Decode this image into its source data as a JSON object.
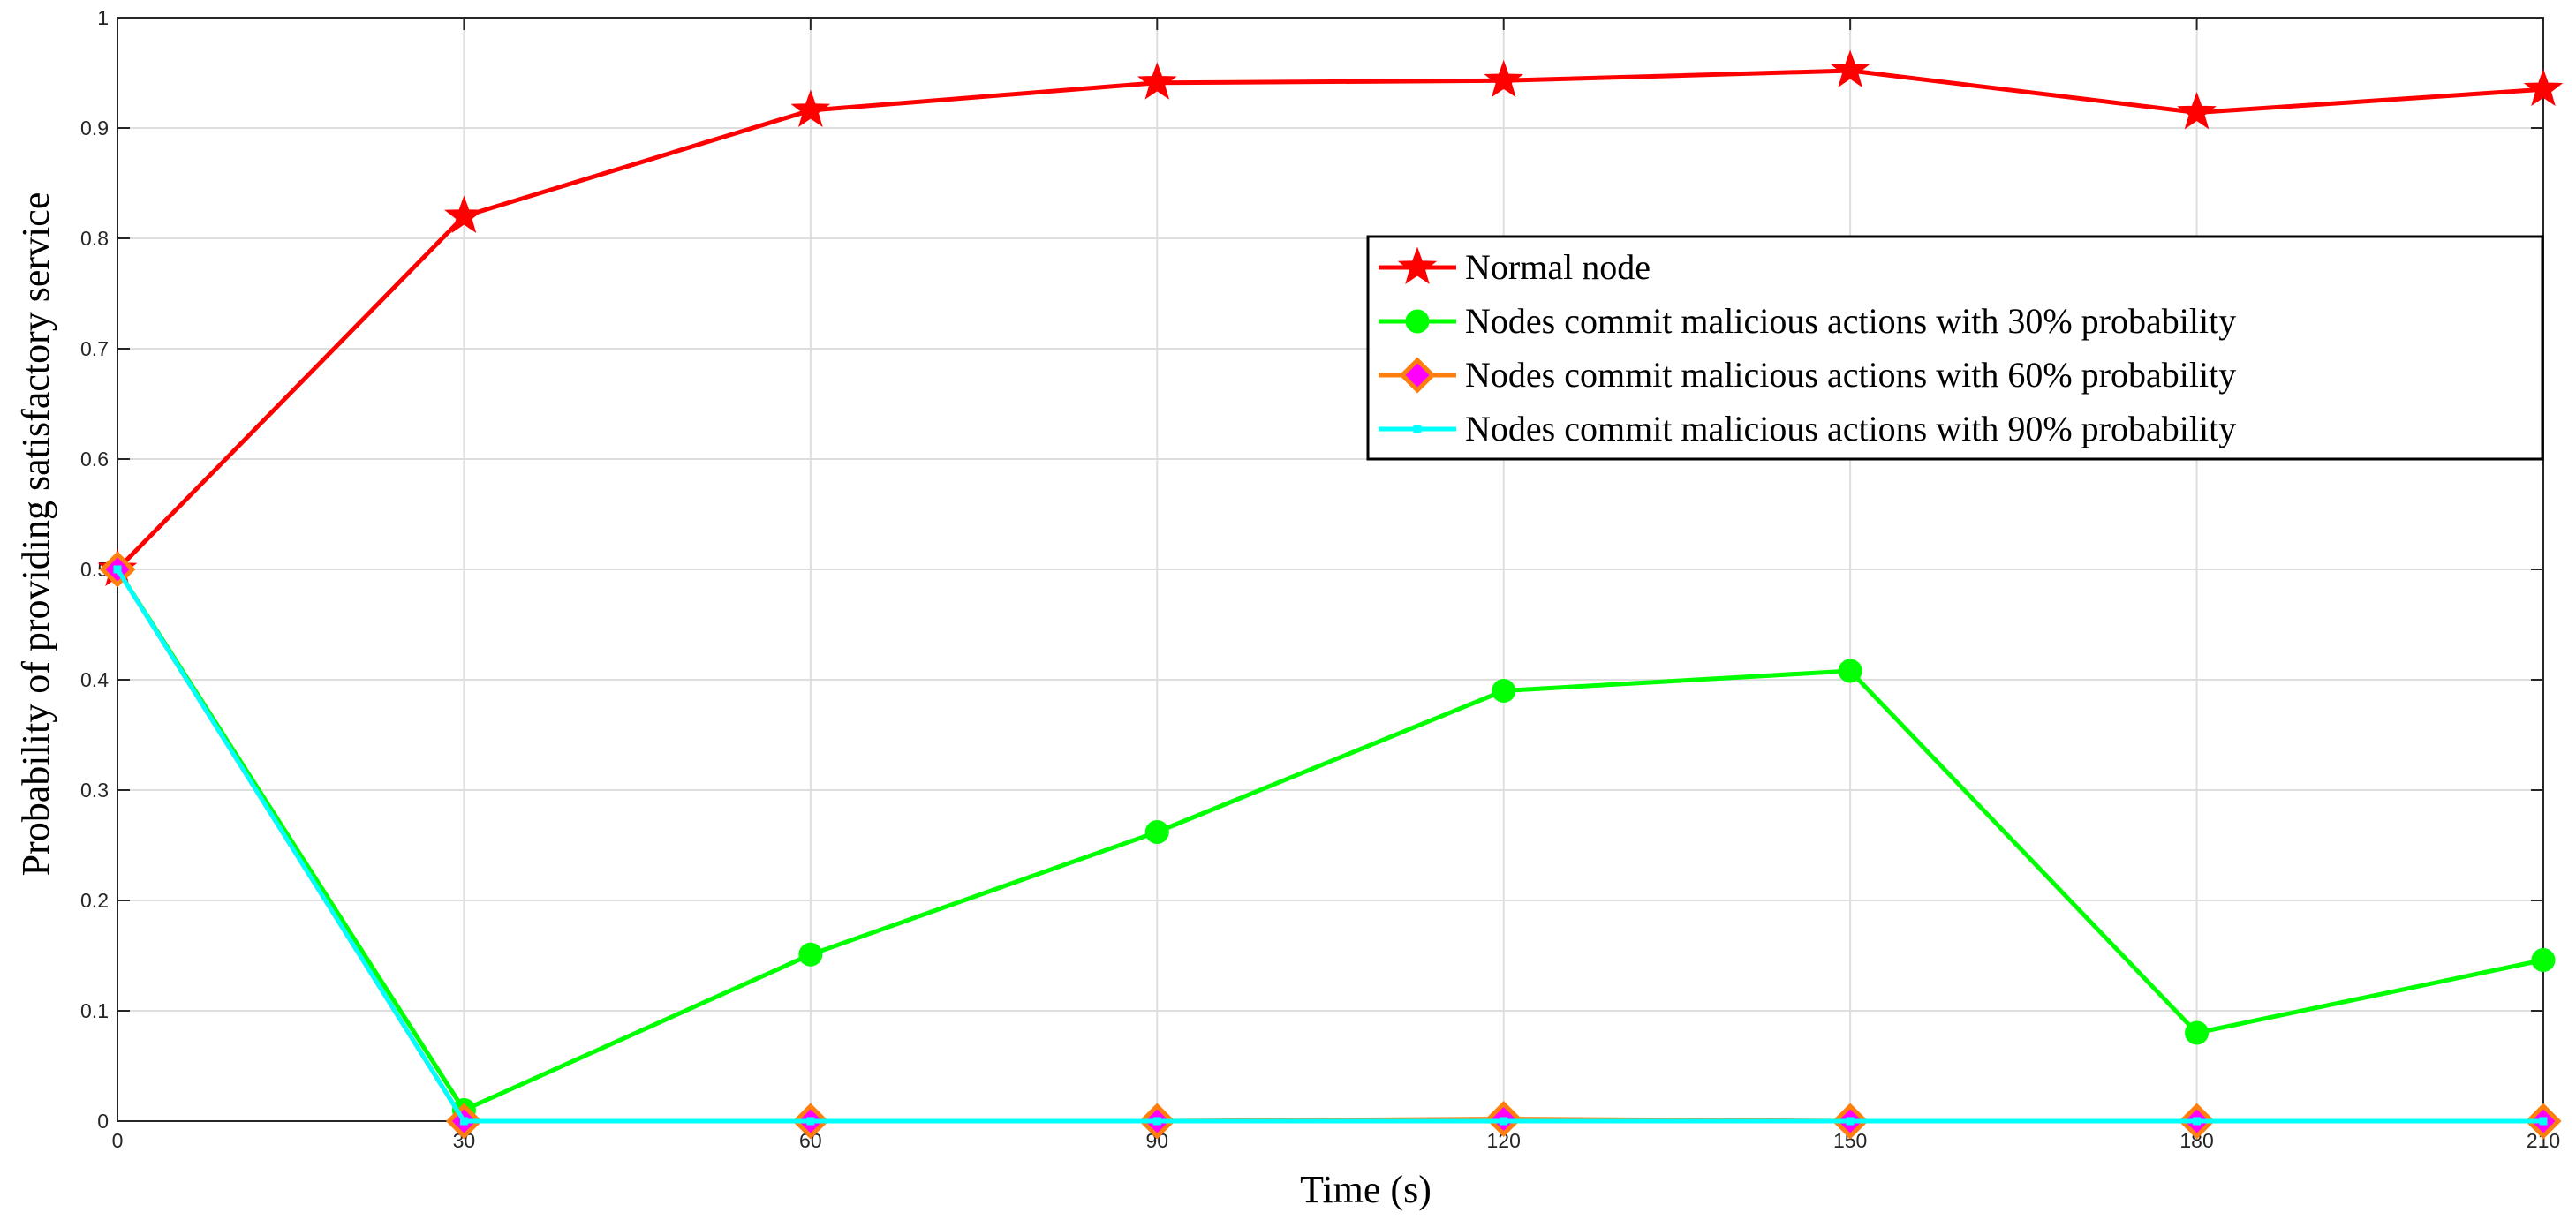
{
  "chart_data": {
    "type": "line",
    "title": "",
    "xlabel": "Time (s)",
    "ylabel": "Probability of providing satisfactory service",
    "x": [
      0,
      30,
      60,
      90,
      120,
      150,
      180,
      210
    ],
    "xlim": [
      0,
      210
    ],
    "ylim": [
      0,
      1
    ],
    "xticks": [
      "0",
      "30",
      "60",
      "90",
      "120",
      "150",
      "180",
      "210"
    ],
    "yticks": [
      "0",
      "0.1",
      "0.2",
      "0.3",
      "0.4",
      "0.5",
      "0.6",
      "0.7",
      "0.8",
      "0.9",
      "1"
    ],
    "grid": true,
    "legend_position": "upper-right",
    "series": [
      {
        "name": "Normal node",
        "color": "#ff0000",
        "marker": "star",
        "values": [
          0.5,
          0.82,
          0.916,
          0.941,
          0.943,
          0.952,
          0.914,
          0.935
        ]
      },
      {
        "name": "Nodes commit malicious actions with 30% probability",
        "color": "#00ff00",
        "marker": "circle",
        "values": [
          0.5,
          0.01,
          0.151,
          0.262,
          0.39,
          0.408,
          0.08,
          0.146
        ]
      },
      {
        "name": "Nodes commit malicious actions with 60% probability",
        "color": "#ff7f0e",
        "marker_fill": "#ff00ff",
        "marker": "diamond",
        "values": [
          0.5,
          0.0,
          0.0,
          0.0,
          0.002,
          0.0,
          0.0,
          0.0
        ]
      },
      {
        "name": "Nodes commit malicious actions with 90% probability",
        "color": "#00ffff",
        "marker": "square",
        "values": [
          0.5,
          0.0,
          0.0,
          0.0,
          0.0,
          0.0,
          0.0,
          0.0
        ]
      }
    ]
  }
}
